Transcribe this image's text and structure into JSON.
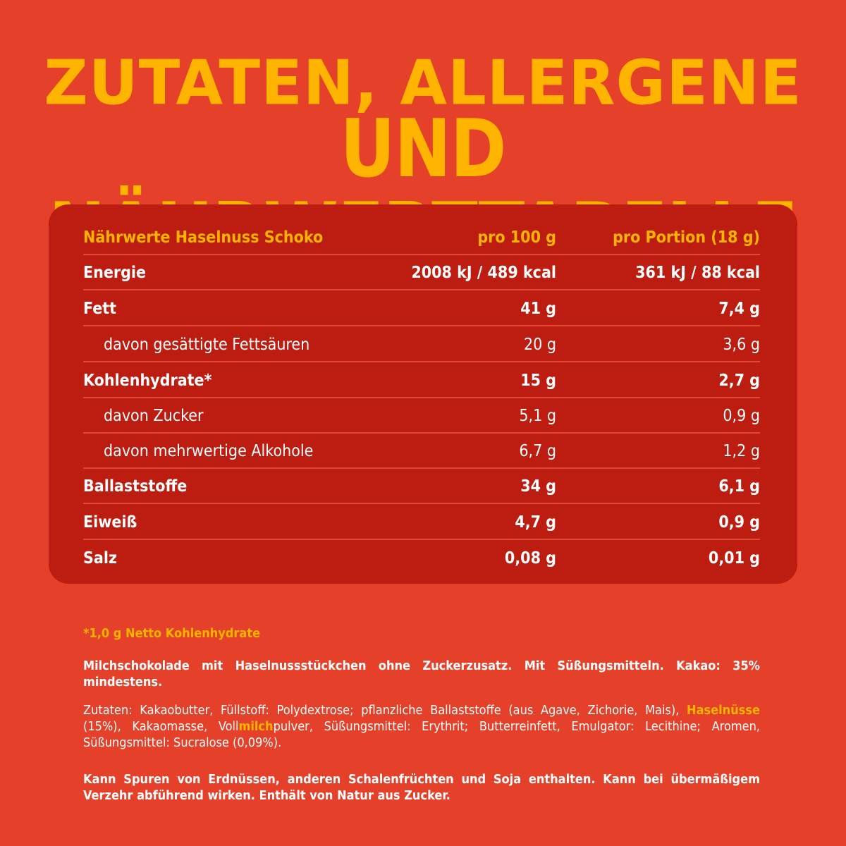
{
  "headline": {
    "line1": "ZUTATEN, ALLERGENE",
    "line2": "UND NÄHRWERTTABELLE"
  },
  "table": {
    "header": {
      "label": "Nährwerte Haselnuss Schoko",
      "col1": "pro 100 g",
      "col2": "pro Portion (18 g)"
    },
    "rows": [
      {
        "label": "Energie",
        "v1": "2008 kJ / 489 kcal",
        "v2": "361 kJ / 88 kcal"
      },
      {
        "label": "Fett",
        "v1": "41 g",
        "v2": "7,4 g"
      },
      {
        "label": "davon gesättigte Fettsäuren",
        "v1": "20 g",
        "v2": "3,6 g"
      },
      {
        "label": "Kohlenhydrate*",
        "v1": "15 g",
        "v2": "2,7 g"
      },
      {
        "label": "davon Zucker",
        "v1": "5,1 g",
        "v2": "0,9 g"
      },
      {
        "label": "davon mehrwertige Alkohole",
        "v1": "6,7 g",
        "v2": "1,2 g"
      },
      {
        "label": "Ballaststoffe",
        "v1": "34 g",
        "v2": "6,1 g"
      },
      {
        "label": "Eiweiß",
        "v1": "4,7 g",
        "v2": "0,9 g"
      },
      {
        "label": "Salz",
        "v1": "0,08 g",
        "v2": "0,01 g"
      }
    ]
  },
  "footnote": "*1,0 g Netto Kohlenhydrate",
  "description": "Milchschokolade mit Haselnussstückchen ohne Zuckerzusatz. Mit Süßungsmitteln. Kakao: 35% mindestens.",
  "ingredients": {
    "part1": "Zutaten: Kakaobutter, Füllstoff: Polydextrose; pflanzliche Ballaststoffe (aus Agave, Zichorie, Mais), ",
    "allergen1": "Haselnüsse",
    "part2": " (15%), Kakaomasse, Voll",
    "allergen2": "milch",
    "part3": "pulver, Süßungsmittel: Erythrit; Butterreinfett, Emulgator: Lecithine; Aromen, Süßungsmittel: Sucralose (0,09%)."
  },
  "warning": "Kann Spuren von Erdnüssen, anderen Schalenfrüchten und Soja enthalten. Kann bei übermäßigem Verzehr abführend wirken. Enthält von Natur aus Zucker.",
  "colors": {
    "background": "#e5412a",
    "panel": "#bd1d10",
    "accent": "#ffb400",
    "text": "#ffffff"
  }
}
